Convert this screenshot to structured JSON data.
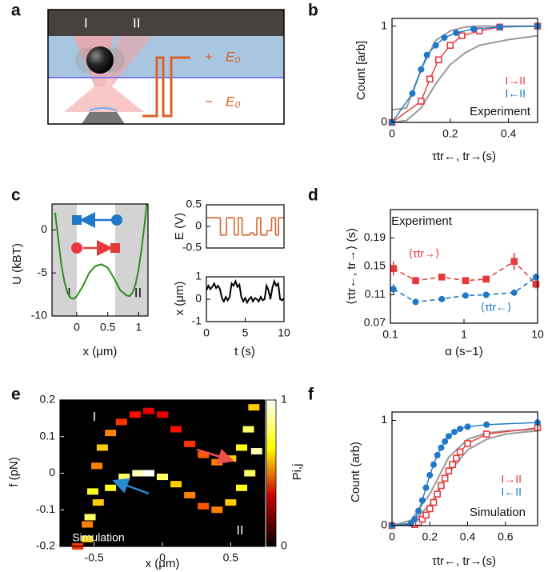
{
  "chart_data": [
    {
      "type": "diagram",
      "panel": "a",
      "labels": [
        "I",
        "II",
        "+",
        "E₀",
        "−",
        "E₀"
      ]
    },
    {
      "type": "line",
      "panel": "b",
      "ylabel": "Count [arb]",
      "xlabel": "τtr←, tr→(s)",
      "annotation": "Experiment",
      "xlim": [
        0,
        0.5
      ],
      "xticks": [
        0,
        0.2,
        0.4
      ],
      "ylim": [
        0,
        1.08
      ],
      "yticks": [
        0,
        1
      ],
      "series": [
        {
          "color": "#999999",
          "x": [
            0,
            0.05,
            0.1,
            0.15,
            0.2,
            0.25,
            0.3,
            0.4,
            0.5
          ],
          "values": [
            0.13,
            0.15,
            0.55,
            0.85,
            0.95,
            0.99,
            1,
            1,
            1
          ]
        },
        {
          "color": "#999999",
          "x": [
            0,
            0.05,
            0.1,
            0.15,
            0.2,
            0.25,
            0.3,
            0.4,
            0.5
          ],
          "values": [
            0,
            0.02,
            0.15,
            0.4,
            0.6,
            0.72,
            0.8,
            0.86,
            0.9
          ]
        },
        {
          "name": "I→II",
          "color": "#e8383d",
          "marker": "square",
          "x": [
            0,
            0.1,
            0.13,
            0.16,
            0.2,
            0.24,
            0.3,
            0.37,
            0.5
          ],
          "values": [
            0,
            0.22,
            0.45,
            0.65,
            0.8,
            0.9,
            0.95,
            0.99,
            1
          ]
        },
        {
          "name": "I←II",
          "color": "#1f78c8",
          "marker": "circle",
          "x": [
            0,
            0.07,
            0.1,
            0.12,
            0.15,
            0.18,
            0.22,
            0.28,
            0.37,
            0.5
          ],
          "values": [
            0,
            0.3,
            0.55,
            0.7,
            0.8,
            0.88,
            0.93,
            0.97,
            0.99,
            1
          ]
        }
      ]
    },
    {
      "type": "line",
      "panel": "c",
      "ylabel": "U (kBT)",
      "xlabel": "x (μm)",
      "xlim": [
        -0.4,
        1.15
      ],
      "xticks": [
        0,
        0.5,
        1
      ],
      "ylim": [
        -10,
        3
      ],
      "yticks": [
        0,
        -5,
        -10
      ],
      "regions": [
        [
          -0.4,
          0
        ],
        [
          0.62,
          1.15
        ]
      ],
      "region_labels": [
        "I",
        "II"
      ],
      "series": [
        {
          "color": "#2e8b1e",
          "x": [
            -0.35,
            -0.3,
            -0.25,
            -0.2,
            -0.15,
            -0.1,
            -0.05,
            0,
            0.1,
            0.2,
            0.3,
            0.4,
            0.5,
            0.6,
            0.7,
            0.8,
            0.85,
            0.9,
            0.95,
            1.0,
            1.05,
            1.1,
            1.13
          ],
          "values": [
            2,
            -1,
            -4,
            -6,
            -7.3,
            -7.9,
            -8,
            -7.7,
            -6.5,
            -5,
            -4.2,
            -4,
            -4.4,
            -5.6,
            -7,
            -7.6,
            -7.7,
            -7.3,
            -6.3,
            -4.5,
            -2,
            1,
            3
          ]
        }
      ]
    },
    {
      "type": "step",
      "ylabel": "E (V)",
      "xlim": [
        0,
        10
      ],
      "ylim": [
        -0.5,
        0.5
      ],
      "yticks": [
        -0.5,
        0,
        0.5
      ],
      "color": "#d9622b",
      "x": [
        0,
        1.8,
        2.6,
        3.6,
        4.1,
        4.6,
        5.6,
        6.1,
        6.5,
        7.0,
        7.8,
        8.4,
        8.9,
        9.3
      ],
      "values": [
        0.2,
        -0.2,
        0.2,
        -0.2,
        0.2,
        -0.2,
        -0.15,
        -0.2,
        0.2,
        -0.2,
        -0.1,
        0.2,
        -0.2,
        0.2
      ]
    },
    {
      "type": "line",
      "ylabel": "x (μm)",
      "xlabel": "t (s)",
      "xlim": [
        0,
        10
      ],
      "xticks": [
        0,
        5,
        10
      ],
      "ylim": [
        -1,
        1
      ],
      "yticks": [
        -1,
        0,
        1
      ],
      "series": [
        {
          "color": "#000000",
          "x": [
            0,
            0.25,
            0.5,
            0.75,
            1,
            1.25,
            1.5,
            1.75,
            2,
            2.25,
            2.5,
            2.75,
            3,
            3.25,
            3.5,
            3.75,
            4,
            4.25,
            4.5,
            4.75,
            5,
            5.25,
            5.5,
            5.75,
            6,
            6.25,
            6.5,
            6.75,
            7,
            7.25,
            7.5,
            7.75,
            8,
            8.25,
            8.5,
            8.75,
            9,
            9.25,
            9.5,
            9.75,
            10
          ],
          "values": [
            0.4,
            0.6,
            0.45,
            0.55,
            0.7,
            0.5,
            0.6,
            0.45,
            0.05,
            -0.1,
            0.1,
            -0.05,
            0.1,
            0.7,
            0.6,
            0.8,
            0.55,
            0.65,
            0.1,
            -0.1,
            0.05,
            -0.15,
            0,
            0.1,
            -0.1,
            0.05,
            0,
            -0.1,
            0.1,
            -0.05,
            0,
            0.6,
            0.4,
            0,
            0.5,
            0.8,
            0.6,
            0.7,
            0,
            -0.05,
            0.05
          ]
        }
      ]
    },
    {
      "type": "scatter",
      "panel": "d",
      "ylabel": "⟨τtr←, tr→⟩ (s)",
      "xlabel": "α (s−1)",
      "annotation": "Experiment",
      "log_x": true,
      "xlim": [
        0.1,
        10
      ],
      "xticks": [
        0.1,
        1,
        10
      ],
      "ylim": [
        0.07,
        0.23
      ],
      "yticks": [
        0.07,
        0.11,
        0.15,
        0.19
      ],
      "series": [
        {
          "name": "⟨τtr→⟩",
          "color": "#e8383d",
          "marker": "square",
          "x": [
            0.11,
            0.22,
            0.5,
            1.05,
            2,
            4.8,
            9.5
          ],
          "values": [
            0.147,
            0.13,
            0.135,
            0.13,
            0.132,
            0.157,
            0.125
          ],
          "errors": [
            0.01,
            0.005,
            0.004,
            0.004,
            0.004,
            0.012,
            0.006
          ]
        },
        {
          "name": "⟨τtr←⟩",
          "color": "#1f78c8",
          "marker": "circle",
          "x": [
            0.11,
            0.22,
            0.5,
            1.05,
            2,
            4.8,
            9.5
          ],
          "values": [
            0.118,
            0.1,
            0.104,
            0.109,
            0.11,
            0.113,
            0.135
          ],
          "errors": [
            0.007,
            0.004,
            0.003,
            0.003,
            0.003,
            0.004,
            0.005
          ]
        }
      ]
    },
    {
      "type": "heatmap",
      "panel": "e",
      "ylabel": "f (pN)",
      "xlabel": "x (μm)",
      "clabel": "Pi,j",
      "annotations": [
        "I",
        "II",
        "Simulation"
      ],
      "xlim": [
        -0.75,
        0.75
      ],
      "xticks": [
        -0.5,
        0,
        0.5
      ],
      "ylim": [
        -0.2,
        0.2
      ],
      "yticks": [
        -0.2,
        -0.1,
        0,
        0.1,
        0.2
      ],
      "clim": [
        0,
        1
      ],
      "cticks": [
        0,
        1
      ],
      "x": [
        -0.55,
        -0.53,
        -0.51,
        -0.48,
        -0.44,
        -0.38,
        -0.3,
        -0.2,
        -0.1,
        0,
        0.1,
        0.2,
        0.3,
        0.4,
        0.5,
        0.58,
        0.63,
        0.67,
        -0.62,
        -0.55,
        -0.47,
        -0.38,
        -0.28,
        -0.18,
        -0.1,
        0,
        0.1,
        0.2,
        0.3,
        0.4,
        0.5,
        0.58,
        0.64,
        0.69
      ],
      "y": [
        -0.18,
        -0.12,
        -0.05,
        0.02,
        0.07,
        0.11,
        0.14,
        0.16,
        0.17,
        0.16,
        0.12,
        0.08,
        0.05,
        0.03,
        0.04,
        0.07,
        0.12,
        0.18,
        -0.2,
        -0.14,
        -0.08,
        -0.04,
        -0.01,
        0,
        0,
        -0.01,
        -0.03,
        -0.06,
        -0.09,
        -0.1,
        -0.08,
        -0.04,
        0,
        0.06
      ],
      "values": [
        0.6,
        0.8,
        0.7,
        0.5,
        0.6,
        0.5,
        0.4,
        0.35,
        0.3,
        0.3,
        0.35,
        0.4,
        0.45,
        0.5,
        0.6,
        0.7,
        0.8,
        0.6,
        0.4,
        0.5,
        0.6,
        0.7,
        0.8,
        0.9,
        1,
        0.8,
        0.6,
        0.5,
        0.45,
        0.5,
        0.6,
        0.7,
        0.8,
        0.9
      ]
    },
    {
      "type": "line",
      "panel": "f",
      "ylabel": "Count (arb)",
      "xlabel": "τtr←, tr→(s)",
      "annotation": "Simulation",
      "xlim": [
        0,
        0.77
      ],
      "xticks": [
        0,
        0.2,
        0.4,
        0.6
      ],
      "ylim": [
        0,
        1.08
      ],
      "yticks": [
        0,
        1
      ],
      "series": [
        {
          "color": "#999999",
          "x": [
            0,
            0.1,
            0.2,
            0.3,
            0.4,
            0.5,
            0.6,
            0.7,
            0.77
          ],
          "values": [
            0,
            0.05,
            0.3,
            0.65,
            0.82,
            0.88,
            0.9,
            0.91,
            0.92
          ]
        },
        {
          "color": "#999999",
          "x": [
            0,
            0.1,
            0.2,
            0.3,
            0.4,
            0.5,
            0.6,
            0.7,
            0.77
          ],
          "values": [
            0,
            0.02,
            0.2,
            0.5,
            0.72,
            0.82,
            0.87,
            0.89,
            0.9
          ]
        },
        {
          "name": "I→II",
          "color": "#e8383d",
          "marker": "square",
          "x": [
            0,
            0.12,
            0.14,
            0.16,
            0.18,
            0.2,
            0.22,
            0.24,
            0.26,
            0.28,
            0.3,
            0.32,
            0.34,
            0.36,
            0.4,
            0.5,
            0.77
          ],
          "values": [
            0,
            0.01,
            0.03,
            0.06,
            0.1,
            0.16,
            0.22,
            0.3,
            0.38,
            0.45,
            0.52,
            0.58,
            0.64,
            0.7,
            0.78,
            0.87,
            0.93
          ]
        },
        {
          "name": "I←II",
          "color": "#1f78c8",
          "marker": "circle",
          "x": [
            0,
            0.1,
            0.12,
            0.14,
            0.16,
            0.18,
            0.2,
            0.22,
            0.24,
            0.26,
            0.28,
            0.3,
            0.33,
            0.36,
            0.4,
            0.5,
            0.77
          ],
          "values": [
            0,
            0.02,
            0.06,
            0.14,
            0.24,
            0.36,
            0.48,
            0.58,
            0.67,
            0.74,
            0.8,
            0.85,
            0.89,
            0.92,
            0.94,
            0.96,
            0.98
          ]
        }
      ]
    }
  ]
}
